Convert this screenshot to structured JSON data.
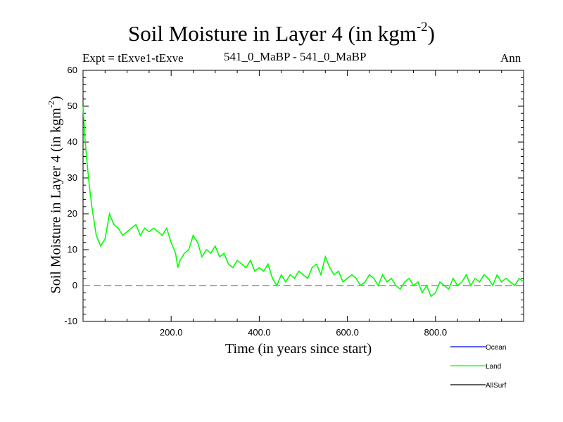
{
  "chart_data": {
    "type": "line",
    "title": "Soil Moisture in Layer 4 (in kgm",
    "title_sup": "-2",
    "title_close": ")",
    "experiment": "Expt = tExve1-tExve",
    "subtitle": "541_0_MaBP - 541_0_MaBP",
    "season": "Ann",
    "xlabel": "Time (in years since start)",
    "ylabel": "Soil Moisture in Layer 4 (in kgm",
    "ylabel_sup": "-2",
    "ylabel_close": ")",
    "xlim": [
      0,
      1000
    ],
    "ylim": [
      -10,
      60
    ],
    "xticks": [
      200,
      400,
      600,
      800
    ],
    "xtick_labels": [
      "200.0",
      "400.0",
      "600.0",
      "800.0"
    ],
    "yticks": [
      -10,
      0,
      10,
      20,
      30,
      40,
      50,
      60
    ],
    "ytick_labels": [
      "-10",
      "0",
      "10",
      "20",
      "30",
      "40",
      "50",
      "60"
    ],
    "zero_line": 0,
    "legend": [
      {
        "name": "Ocean",
        "color": "#0000ff"
      },
      {
        "name": "Land",
        "color": "#00ff00"
      },
      {
        "name": "AllSurf",
        "color": "#000000"
      }
    ],
    "series": [
      {
        "name": "Land",
        "color": "#00ff00",
        "x": [
          0,
          5,
          10,
          15,
          20,
          25,
          30,
          40,
          50,
          60,
          70,
          80,
          90,
          100,
          110,
          120,
          130,
          140,
          150,
          160,
          170,
          180,
          190,
          200,
          210,
          215,
          220,
          230,
          240,
          250,
          260,
          270,
          280,
          290,
          300,
          310,
          320,
          330,
          340,
          350,
          360,
          370,
          380,
          390,
          400,
          410,
          420,
          430,
          440,
          450,
          460,
          470,
          480,
          490,
          500,
          510,
          520,
          530,
          540,
          550,
          560,
          570,
          580,
          590,
          600,
          610,
          620,
          630,
          640,
          650,
          660,
          670,
          680,
          690,
          700,
          710,
          720,
          730,
          740,
          750,
          760,
          770,
          780,
          790,
          800,
          810,
          820,
          830,
          840,
          850,
          860,
          870,
          880,
          890,
          900,
          910,
          920,
          930,
          940,
          950,
          960,
          970,
          980,
          990,
          1000
        ],
        "y": [
          50,
          40,
          33,
          27,
          22,
          18,
          14,
          11,
          13,
          20,
          17,
          16,
          14,
          15,
          16,
          17,
          14,
          16,
          15,
          16,
          15,
          14,
          16,
          12,
          9,
          5,
          7,
          9,
          10,
          14,
          12,
          8,
          10,
          9,
          11,
          8,
          9,
          6,
          5,
          7,
          6,
          5,
          7,
          4,
          5,
          4,
          6,
          2,
          0,
          3,
          1,
          3,
          2,
          4,
          3,
          2,
          5,
          6,
          3,
          8,
          5,
          3,
          4,
          1,
          2,
          3,
          2,
          0,
          1,
          3,
          2,
          0,
          3,
          1,
          2,
          0,
          -1,
          1,
          2,
          0,
          1,
          -2,
          0,
          -3,
          -2,
          1,
          0,
          -1,
          2,
          0,
          1,
          3,
          0,
          2,
          1,
          3,
          2,
          0,
          3,
          1,
          2,
          1,
          0,
          2,
          1
        ]
      }
    ]
  }
}
